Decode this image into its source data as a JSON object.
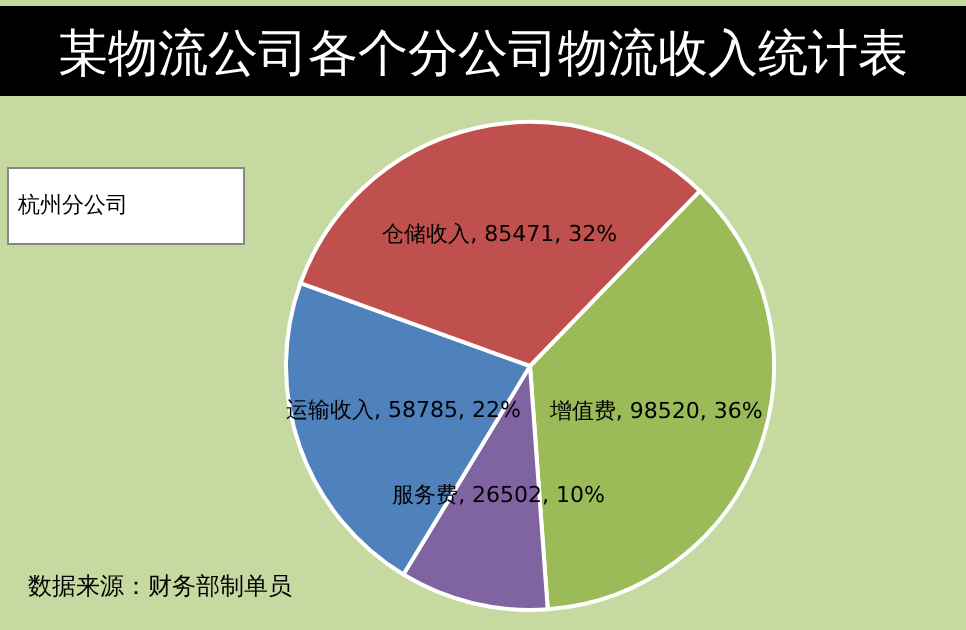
{
  "chart_data": {
    "type": "pie",
    "title": "某物流公司各个分公司物流收入统计表",
    "categories": [
      "增值费",
      "服务费",
      "运输收入",
      "仓储收入"
    ],
    "values": [
      98520,
      26502,
      58785,
      85471
    ],
    "colors": [
      "#9bbb59",
      "#8064a2",
      "#4f81bd",
      "#c0504d"
    ],
    "value_labels": [
      "98520, 36%",
      "26502, 10%",
      "58785, 22%",
      "85471, 32%"
    ],
    "annotations": [
      "杭州分公司",
      "数据来源：财务部制单员"
    ]
  }
}
